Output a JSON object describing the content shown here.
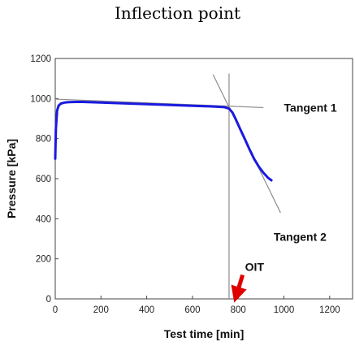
{
  "title": "Inflection point",
  "chart_data": {
    "type": "line",
    "xlabel": "Test time [min]",
    "ylabel": "Pressure [kPa]",
    "xlim": [
      0,
      1300
    ],
    "ylim": [
      0,
      1200
    ],
    "xticks": [
      0,
      200,
      400,
      600,
      800,
      1000,
      1200
    ],
    "yticks": [
      0,
      200,
      400,
      600,
      800,
      1000,
      1200
    ],
    "grid": false,
    "series": [
      {
        "color": "#1a1adf",
        "x": [
          0,
          3,
          8,
          15,
          25,
          40,
          60,
          90,
          120,
          200,
          300,
          400,
          500,
          600,
          700,
          740,
          760,
          775,
          790,
          810,
          830,
          850,
          870,
          890,
          910,
          930,
          945
        ],
        "y": [
          700,
          850,
          940,
          965,
          975,
          980,
          982,
          983,
          983,
          980,
          976,
          972,
          968,
          964,
          960,
          957,
          950,
          930,
          895,
          845,
          795,
          745,
          698,
          660,
          630,
          605,
          592
        ]
      }
    ],
    "reference_lines": [
      {
        "name": "Tangent 1",
        "x": [
          0,
          910
        ],
        "y": [
          997,
          955
        ],
        "color": "#8c8c8c"
      },
      {
        "name": "Tangent 2",
        "x": [
          690,
          985
        ],
        "y": [
          1120,
          430
        ],
        "color": "#8c8c8c"
      },
      {
        "name": "vertical",
        "x": [
          760,
          760
        ],
        "y": [
          0,
          1125
        ],
        "color": "#8c8c8c"
      }
    ],
    "annotations": [
      {
        "text": "Tangent 1",
        "x": 1000,
        "y": 955
      },
      {
        "text": "Tangent 2",
        "x": 955,
        "y": 310
      },
      {
        "text": "OIT",
        "x": 830,
        "y": 160,
        "arrow_to": [
          775,
          0
        ],
        "arrow_color": "#e00000"
      }
    ]
  }
}
